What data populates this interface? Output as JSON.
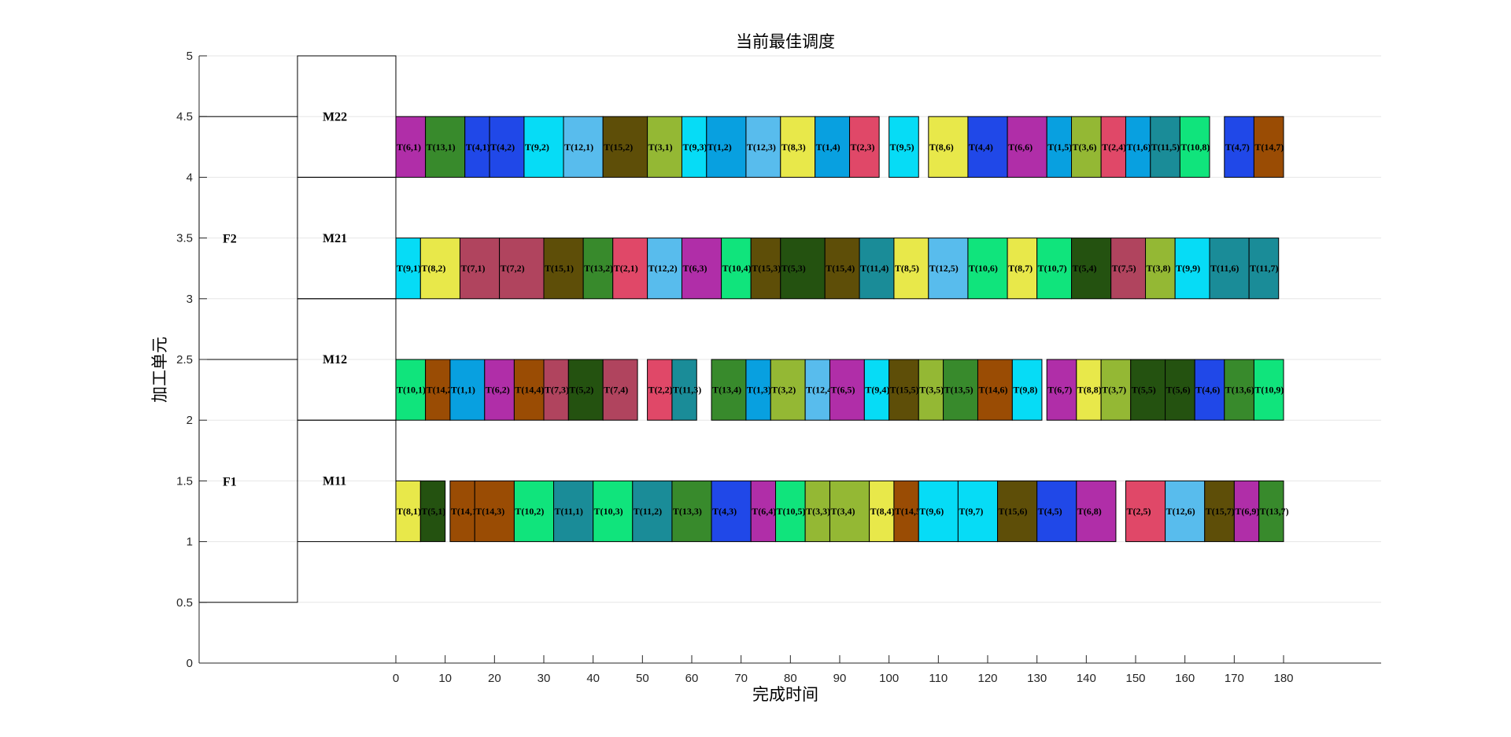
{
  "chart_data": {
    "type": "gantt",
    "title": "当前最佳调度",
    "xlabel": "完成时间",
    "ylabel": "加工单元",
    "xlim": [
      0,
      180
    ],
    "ylim": [
      0,
      5
    ],
    "x_ticks": [
      "0",
      "10",
      "20",
      "30",
      "40",
      "50",
      "60",
      "70",
      "80",
      "90",
      "100",
      "110",
      "120",
      "130",
      "140",
      "150",
      "160",
      "170",
      "180"
    ],
    "y_ticks": [
      "0",
      "0.5",
      "1",
      "1.5",
      "2",
      "2.5",
      "3",
      "3.5",
      "4",
      "4.5",
      "5"
    ],
    "factories": [
      {
        "name": "F1",
        "y_range": [
          0.5,
          2.5
        ]
      },
      {
        "name": "F2",
        "y_range": [
          2.5,
          4.5
        ]
      }
    ],
    "machines": [
      {
        "name": "M11",
        "y": 1.25
      },
      {
        "name": "M12",
        "y": 2.25
      },
      {
        "name": "M21",
        "y": 3.25
      },
      {
        "name": "M22",
        "y": 4.25
      }
    ],
    "rows": [
      {
        "machine": "M11",
        "y0": 1.0,
        "y1": 1.5,
        "tasks": [
          {
            "label": "T(8,1)",
            "start": 0,
            "end": 5,
            "color": "#e8e84a"
          },
          {
            "label": "T(5,1)",
            "start": 5,
            "end": 10,
            "color": "#245210"
          },
          {
            "label": "T(14,1)",
            "start": 11,
            "end": 16,
            "color": "#9a4c04"
          },
          {
            "label": "T(14,3)",
            "start": 16,
            "end": 24,
            "color": "#9a4c04"
          },
          {
            "label": "T(10,2)",
            "start": 24,
            "end": 32,
            "color": "#10e47c"
          },
          {
            "label": "T(11,1)",
            "start": 32,
            "end": 40,
            "color": "#1a8c98"
          },
          {
            "label": "T(10,3)",
            "start": 40,
            "end": 48,
            "color": "#10e47c"
          },
          {
            "label": "T(11,2)",
            "start": 48,
            "end": 56,
            "color": "#1a8c98"
          },
          {
            "label": "T(13,3)",
            "start": 56,
            "end": 64,
            "color": "#388a2c"
          },
          {
            "label": "T(4,3)",
            "start": 64,
            "end": 72,
            "color": "#2048e8"
          },
          {
            "label": "T(6,4)",
            "start": 72,
            "end": 77,
            "color": "#b02ea8"
          },
          {
            "label": "T(10,5)",
            "start": 77,
            "end": 83,
            "color": "#10e47c"
          },
          {
            "label": "T(3,3)",
            "start": 83,
            "end": 88,
            "color": "#94b834"
          },
          {
            "label": "T(3,4)",
            "start": 88,
            "end": 96,
            "color": "#94b834"
          },
          {
            "label": "T(8,4)",
            "start": 96,
            "end": 101,
            "color": "#e8e84a"
          },
          {
            "label": "T(14,5)",
            "start": 101,
            "end": 106,
            "color": "#9a4c04"
          },
          {
            "label": "T(9,6)",
            "start": 106,
            "end": 114,
            "color": "#06dcf6"
          },
          {
            "label": "T(9,7)",
            "start": 114,
            "end": 122,
            "color": "#06dcf6"
          },
          {
            "label": "T(15,6)",
            "start": 122,
            "end": 130,
            "color": "#5e4e08"
          },
          {
            "label": "T(4,5)",
            "start": 130,
            "end": 138,
            "color": "#2048e8"
          },
          {
            "label": "T(6,8)",
            "start": 138,
            "end": 146,
            "color": "#b02ea8"
          },
          {
            "label": "T(2,5)",
            "start": 148,
            "end": 156,
            "color": "#e04868"
          },
          {
            "label": "T(12,6)",
            "start": 156,
            "end": 164,
            "color": "#58bced"
          },
          {
            "label": "T(15,7)",
            "start": 164,
            "end": 170,
            "color": "#5e4e08"
          },
          {
            "label": "T(6,9)",
            "start": 170,
            "end": 175,
            "color": "#b02ea8"
          },
          {
            "label": "T(13,7)",
            "start": 175,
            "end": 180,
            "color": "#388a2c"
          }
        ]
      },
      {
        "machine": "M12",
        "y0": 2.0,
        "y1": 2.5,
        "tasks": [
          {
            "label": "T(10,1)",
            "start": 0,
            "end": 6,
            "color": "#10e47c"
          },
          {
            "label": "T(14,2)",
            "start": 6,
            "end": 11,
            "color": "#9a4c04"
          },
          {
            "label": "T(1,1)",
            "start": 11,
            "end": 18,
            "color": "#08a0e0"
          },
          {
            "label": "T(6,2)",
            "start": 18,
            "end": 24,
            "color": "#b02ea8"
          },
          {
            "label": "T(14,4)",
            "start": 24,
            "end": 30,
            "color": "#9a4c04"
          },
          {
            "label": "T(7,3)",
            "start": 30,
            "end": 35,
            "color": "#b0445e"
          },
          {
            "label": "T(5,2)",
            "start": 35,
            "end": 42,
            "color": "#245210"
          },
          {
            "label": "T(7,4)",
            "start": 42,
            "end": 49,
            "color": "#b0445e"
          },
          {
            "label": "T(2,2)",
            "start": 51,
            "end": 56,
            "color": "#e04868"
          },
          {
            "label": "T(11,3)",
            "start": 56,
            "end": 61,
            "color": "#1a8c98"
          },
          {
            "label": "T(13,4)",
            "start": 64,
            "end": 71,
            "color": "#388a2c"
          },
          {
            "label": "T(1,3)",
            "start": 71,
            "end": 76,
            "color": "#08a0e0"
          },
          {
            "label": "T(3,2)",
            "start": 76,
            "end": 83,
            "color": "#94b834"
          },
          {
            "label": "T(12,4)",
            "start": 83,
            "end": 88,
            "color": "#58bced"
          },
          {
            "label": "T(6,5)",
            "start": 88,
            "end": 95,
            "color": "#b02ea8"
          },
          {
            "label": "T(9,4)",
            "start": 95,
            "end": 100,
            "color": "#06dcf6"
          },
          {
            "label": "T(15,5)",
            "start": 100,
            "end": 106,
            "color": "#5e4e08"
          },
          {
            "label": "T(3,5)",
            "start": 106,
            "end": 111,
            "color": "#94b834"
          },
          {
            "label": "T(13,5)",
            "start": 111,
            "end": 118,
            "color": "#388a2c"
          },
          {
            "label": "T(14,6)",
            "start": 118,
            "end": 125,
            "color": "#9a4c04"
          },
          {
            "label": "T(9,8)",
            "start": 125,
            "end": 131,
            "color": "#06dcf6"
          },
          {
            "label": "T(6,7)",
            "start": 132,
            "end": 138,
            "color": "#b02ea8"
          },
          {
            "label": "T(8,8)",
            "start": 138,
            "end": 143,
            "color": "#e8e84a"
          },
          {
            "label": "T(3,7)",
            "start": 143,
            "end": 149,
            "color": "#94b834"
          },
          {
            "label": "T(5,5)",
            "start": 149,
            "end": 156,
            "color": "#245210"
          },
          {
            "label": "T(5,6)",
            "start": 156,
            "end": 162,
            "color": "#245210"
          },
          {
            "label": "T(4,6)",
            "start": 162,
            "end": 168,
            "color": "#2048e8"
          },
          {
            "label": "T(13,6)",
            "start": 168,
            "end": 174,
            "color": "#388a2c"
          },
          {
            "label": "T(10,9)",
            "start": 174,
            "end": 180,
            "color": "#10e47c"
          }
        ]
      },
      {
        "machine": "M21",
        "y0": 3.0,
        "y1": 3.5,
        "tasks": [
          {
            "label": "T(9,1)",
            "start": 0,
            "end": 5,
            "color": "#06dcf6"
          },
          {
            "label": "T(8,2)",
            "start": 5,
            "end": 13,
            "color": "#e8e84a"
          },
          {
            "label": "T(7,1)",
            "start": 13,
            "end": 21,
            "color": "#b0445e"
          },
          {
            "label": "T(7,2)",
            "start": 21,
            "end": 30,
            "color": "#b0445e"
          },
          {
            "label": "T(15,1)",
            "start": 30,
            "end": 38,
            "color": "#5e4e08"
          },
          {
            "label": "T(13,2)",
            "start": 38,
            "end": 44,
            "color": "#388a2c"
          },
          {
            "label": "T(2,1)",
            "start": 44,
            "end": 51,
            "color": "#e04868"
          },
          {
            "label": "T(12,2)",
            "start": 51,
            "end": 58,
            "color": "#58bced"
          },
          {
            "label": "T(6,3)",
            "start": 58,
            "end": 66,
            "color": "#b02ea8"
          },
          {
            "label": "T(10,4)",
            "start": 66,
            "end": 72,
            "color": "#10e47c"
          },
          {
            "label": "T(15,3)",
            "start": 72,
            "end": 78,
            "color": "#5e4e08"
          },
          {
            "label": "T(5,3)",
            "start": 78,
            "end": 87,
            "color": "#245210"
          },
          {
            "label": "T(15,4)",
            "start": 87,
            "end": 94,
            "color": "#5e4e08"
          },
          {
            "label": "T(11,4)",
            "start": 94,
            "end": 101,
            "color": "#1a8c98"
          },
          {
            "label": "T(8,5)",
            "start": 101,
            "end": 108,
            "color": "#e8e84a"
          },
          {
            "label": "T(12,5)",
            "start": 108,
            "end": 116,
            "color": "#58bced"
          },
          {
            "label": "T(10,6)",
            "start": 116,
            "end": 124,
            "color": "#10e47c"
          },
          {
            "label": "T(8,7)",
            "start": 124,
            "end": 130,
            "color": "#e8e84a"
          },
          {
            "label": "T(10,7)",
            "start": 130,
            "end": 137,
            "color": "#10e47c"
          },
          {
            "label": "T(5,4)",
            "start": 137,
            "end": 145,
            "color": "#245210"
          },
          {
            "label": "T(7,5)",
            "start": 145,
            "end": 152,
            "color": "#b0445e"
          },
          {
            "label": "T(3,8)",
            "start": 152,
            "end": 158,
            "color": "#94b834"
          },
          {
            "label": "T(9,9)",
            "start": 158,
            "end": 165,
            "color": "#06dcf6"
          },
          {
            "label": "T(11,6)",
            "start": 165,
            "end": 173,
            "color": "#1a8c98"
          },
          {
            "label": "T(11,7)",
            "start": 173,
            "end": 179,
            "color": "#1a8c98"
          }
        ]
      },
      {
        "machine": "M22",
        "y0": 4.0,
        "y1": 4.5,
        "tasks": [
          {
            "label": "T(6,1)",
            "start": 0,
            "end": 6,
            "color": "#b02ea8"
          },
          {
            "label": "T(13,1)",
            "start": 6,
            "end": 14,
            "color": "#388a2c"
          },
          {
            "label": "T(4,1)",
            "start": 14,
            "end": 19,
            "color": "#2048e8"
          },
          {
            "label": "T(4,2)",
            "start": 19,
            "end": 26,
            "color": "#2048e8"
          },
          {
            "label": "T(9,2)",
            "start": 26,
            "end": 34,
            "color": "#06dcf6"
          },
          {
            "label": "T(12,1)",
            "start": 34,
            "end": 42,
            "color": "#58bced"
          },
          {
            "label": "T(15,2)",
            "start": 42,
            "end": 51,
            "color": "#5e4e08"
          },
          {
            "label": "T(3,1)",
            "start": 51,
            "end": 58,
            "color": "#94b834"
          },
          {
            "label": "T(9,3)",
            "start": 58,
            "end": 63,
            "color": "#06dcf6"
          },
          {
            "label": "T(1,2)",
            "start": 63,
            "end": 71,
            "color": "#08a0e0"
          },
          {
            "label": "T(12,3)",
            "start": 71,
            "end": 78,
            "color": "#58bced"
          },
          {
            "label": "T(8,3)",
            "start": 78,
            "end": 85,
            "color": "#e8e84a"
          },
          {
            "label": "T(1,4)",
            "start": 85,
            "end": 92,
            "color": "#08a0e0"
          },
          {
            "label": "T(2,3)",
            "start": 92,
            "end": 98,
            "color": "#e04868"
          },
          {
            "label": "T(9,5)",
            "start": 100,
            "end": 106,
            "color": "#06dcf6"
          },
          {
            "label": "T(8,6)",
            "start": 108,
            "end": 116,
            "color": "#e8e84a"
          },
          {
            "label": "T(4,4)",
            "start": 116,
            "end": 124,
            "color": "#2048e8"
          },
          {
            "label": "T(6,6)",
            "start": 124,
            "end": 132,
            "color": "#b02ea8"
          },
          {
            "label": "T(1,5)",
            "start": 132,
            "end": 137,
            "color": "#08a0e0"
          },
          {
            "label": "T(3,6)",
            "start": 137,
            "end": 143,
            "color": "#94b834"
          },
          {
            "label": "T(2,4)",
            "start": 143,
            "end": 148,
            "color": "#e04868"
          },
          {
            "label": "T(1,6)",
            "start": 148,
            "end": 153,
            "color": "#08a0e0"
          },
          {
            "label": "T(11,5)",
            "start": 153,
            "end": 159,
            "color": "#1a8c98"
          },
          {
            "label": "T(10,8)",
            "start": 159,
            "end": 165,
            "color": "#10e47c"
          },
          {
            "label": "T(4,7)",
            "start": 168,
            "end": 174,
            "color": "#2048e8"
          },
          {
            "label": "T(14,7)",
            "start": 174,
            "end": 180,
            "color": "#9a4c04"
          }
        ]
      }
    ],
    "grid": "horizontal",
    "legend": "none"
  }
}
